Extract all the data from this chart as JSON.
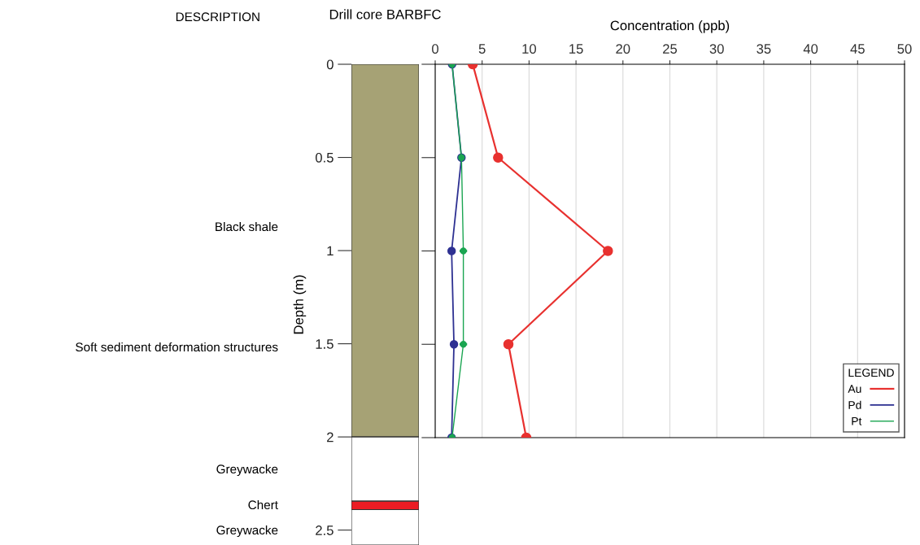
{
  "chart_data": [
    {
      "type": "bar",
      "stacked": true,
      "title": "Drill core BARBFC",
      "ylabel": "Depth (m)",
      "categories": [
        null
      ],
      "ylim": [
        2.58,
        0
      ],
      "yticks": [
        0,
        0.5,
        1,
        1.5,
        2,
        2.5
      ],
      "series": [
        {
          "color": "#a6a275",
          "values": [
            2
          ]
        },
        {
          "color": "#ffffff",
          "values": [
            0.345
          ]
        },
        {
          "color": "#ec1c24",
          "values": [
            0.045
          ]
        },
        {
          "color": "#ffffff",
          "values": [
            0.19
          ]
        }
      ],
      "annotations": [
        "DESCRIPTION",
        "Black shale",
        "Soft sediment deformation structures",
        "Greywacke",
        "Chert",
        "Greywacke"
      ]
    },
    {
      "type": "line",
      "xlabel": "Concentration (ppb)",
      "xlim": [
        0,
        50
      ],
      "xticks": [
        0,
        5,
        10,
        15,
        20,
        25,
        30,
        35,
        40,
        45,
        50
      ],
      "ylim": [
        2,
        0
      ],
      "yticks": [
        0,
        0.5,
        1,
        1.5,
        2
      ],
      "tick_labels": "x",
      "grid": "x",
      "legend": "bottom right",
      "legend_title": "LEGEND",
      "marker": "circle",
      "line_style": "solid",
      "series": [
        {
          "name": "Au",
          "color": "#e8312f",
          "x": [
            4,
            6.7,
            18.4,
            7.8,
            9.7
          ],
          "values": [
            0,
            0.5,
            1,
            1.5,
            2
          ]
        },
        {
          "name": "Pd",
          "color": "#2e3192",
          "x": [
            1.8,
            2.8,
            1.75,
            2.0,
            1.75
          ],
          "values": [
            0,
            0.5,
            1,
            1.5,
            2
          ]
        },
        {
          "name": "Pt",
          "color": "#1aa551",
          "x": [
            1.8,
            2.8,
            3.0,
            3.0,
            1.8
          ],
          "values": [
            0,
            0.5,
            1,
            1.5,
            2
          ],
          "xerrors": [
            null,
            null,
            0.4,
            0.4,
            null
          ]
        }
      ]
    }
  ]
}
